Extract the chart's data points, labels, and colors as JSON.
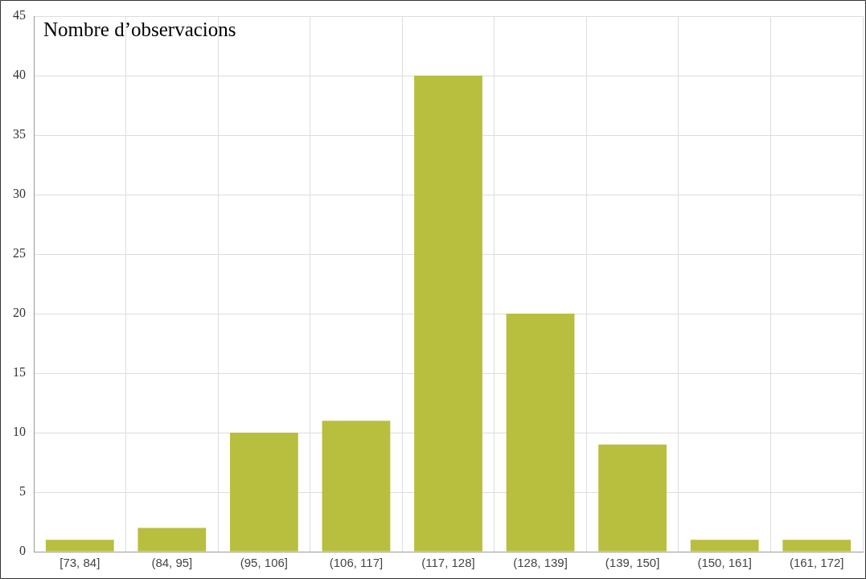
{
  "chart_data": {
    "type": "bar",
    "title": "Nombre d’observacions",
    "categories": [
      "[73, 84]",
      "(84, 95]",
      "(95, 106]",
      "(106, 117]",
      "(117, 128]",
      "(128, 139]",
      "(139, 150]",
      "(150, 161]",
      "(161, 172]"
    ],
    "values": [
      1,
      2,
      10,
      11,
      40,
      20,
      9,
      1,
      1
    ],
    "color": "#b8be3e",
    "ylim": [
      0,
      45
    ],
    "yticks": [
      0,
      5,
      10,
      15,
      20,
      25,
      30,
      35,
      40,
      45
    ],
    "grid": true
  }
}
